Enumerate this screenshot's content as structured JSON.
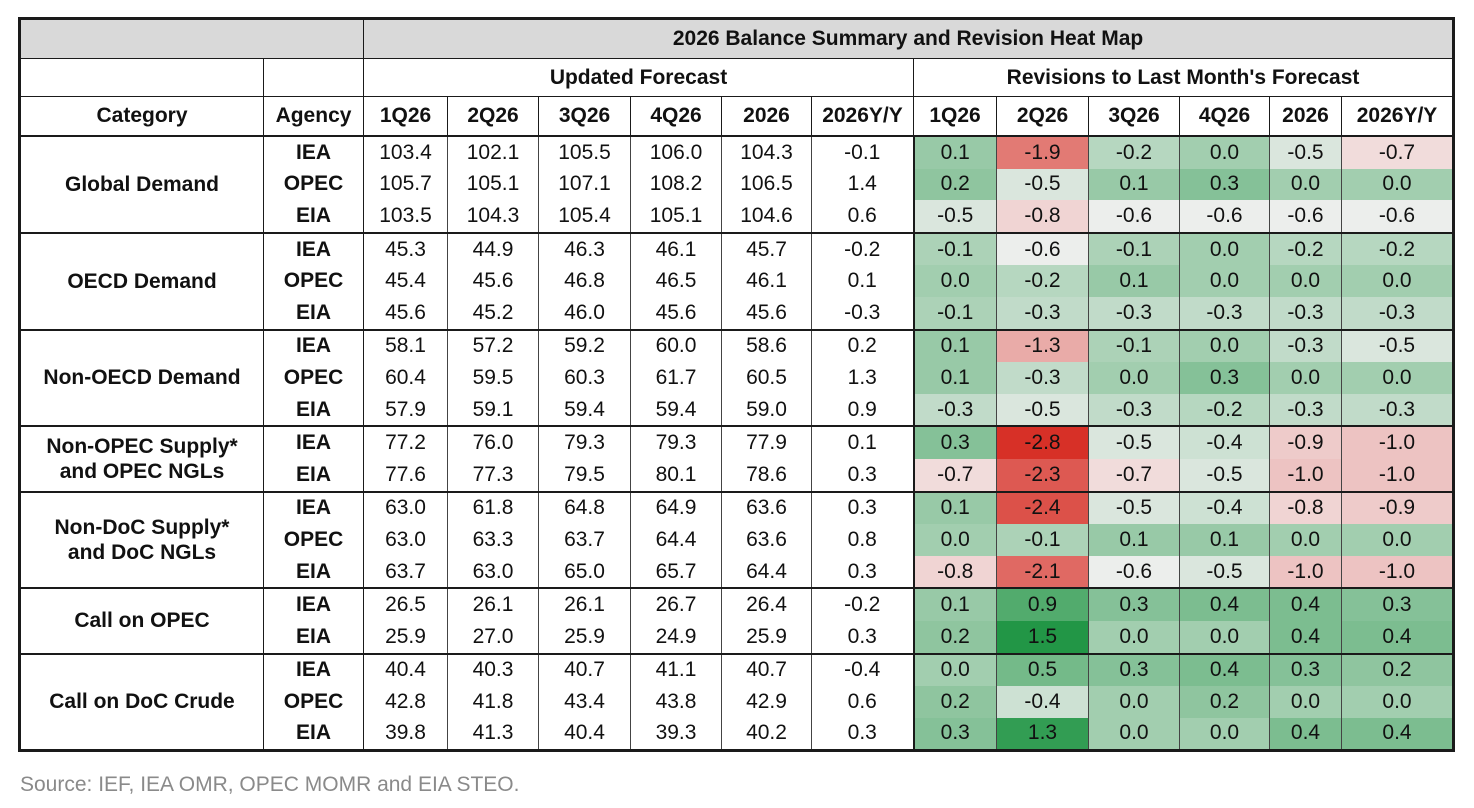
{
  "header": {
    "title": "2026 Balance Summary and Revision Heat Map",
    "groups": [
      "Updated Forecast",
      "Revisions to Last Month's Forecast"
    ],
    "columns": [
      "Category",
      "Agency",
      "1Q26",
      "2Q26",
      "3Q26",
      "4Q26",
      "2026",
      "2026Y/Y",
      "1Q26",
      "2Q26",
      "3Q26",
      "4Q26",
      "2026",
      "2026Y/Y"
    ]
  },
  "table": {
    "groups": [
      {
        "category": "Global Demand",
        "rows": [
          {
            "agency": "IEA",
            "values": [
              "103.4",
              "102.1",
              "105.5",
              "106.0",
              "104.3",
              "-0.1",
              "0.1",
              "-1.9",
              "-0.2",
              "0.0",
              "-0.5",
              "-0.7"
            ]
          },
          {
            "agency": "OPEC",
            "values": [
              "105.7",
              "105.1",
              "107.1",
              "108.2",
              "106.5",
              "1.4",
              "0.2",
              "-0.5",
              "0.1",
              "0.3",
              "0.0",
              "0.0"
            ]
          },
          {
            "agency": "EIA",
            "values": [
              "103.5",
              "104.3",
              "105.4",
              "105.1",
              "104.6",
              "0.6",
              "-0.5",
              "-0.8",
              "-0.6",
              "-0.6",
              "-0.6",
              "-0.6"
            ]
          }
        ]
      },
      {
        "category": "OECD Demand",
        "rows": [
          {
            "agency": "IEA",
            "values": [
              "45.3",
              "44.9",
              "46.3",
              "46.1",
              "45.7",
              "-0.2",
              "-0.1",
              "-0.6",
              "-0.1",
              "0.0",
              "-0.2",
              "-0.2"
            ]
          },
          {
            "agency": "OPEC",
            "values": [
              "45.4",
              "45.6",
              "46.8",
              "46.5",
              "46.1",
              "0.1",
              "0.0",
              "-0.2",
              "0.1",
              "0.0",
              "0.0",
              "0.0"
            ]
          },
          {
            "agency": "EIA",
            "values": [
              "45.6",
              "45.2",
              "46.0",
              "45.6",
              "45.6",
              "-0.3",
              "-0.1",
              "-0.3",
              "-0.3",
              "-0.3",
              "-0.3",
              "-0.3"
            ]
          }
        ]
      },
      {
        "category": "Non-OECD Demand",
        "rows": [
          {
            "agency": "IEA",
            "values": [
              "58.1",
              "57.2",
              "59.2",
              "60.0",
              "58.6",
              "0.2",
              "0.1",
              "-1.3",
              "-0.1",
              "0.0",
              "-0.3",
              "-0.5"
            ]
          },
          {
            "agency": "OPEC",
            "values": [
              "60.4",
              "59.5",
              "60.3",
              "61.7",
              "60.5",
              "1.3",
              "0.1",
              "-0.3",
              "0.0",
              "0.3",
              "0.0",
              "0.0"
            ]
          },
          {
            "agency": "EIA",
            "values": [
              "57.9",
              "59.1",
              "59.4",
              "59.4",
              "59.0",
              "0.9",
              "-0.3",
              "-0.5",
              "-0.3",
              "-0.2",
              "-0.3",
              "-0.3"
            ]
          }
        ]
      },
      {
        "category": "Non-OPEC Supply*\nand OPEC NGLs",
        "rows": [
          {
            "agency": "IEA",
            "values": [
              "77.2",
              "76.0",
              "79.3",
              "79.3",
              "77.9",
              "0.1",
              "0.3",
              "-2.8",
              "-0.5",
              "-0.4",
              "-0.9",
              "-1.0"
            ]
          },
          {
            "agency": "EIA",
            "values": [
              "77.6",
              "77.3",
              "79.5",
              "80.1",
              "78.6",
              "0.3",
              "-0.7",
              "-2.3",
              "-0.7",
              "-0.5",
              "-1.0",
              "-1.0"
            ]
          }
        ]
      },
      {
        "category": "Non-DoC Supply*\nand DoC NGLs",
        "rows": [
          {
            "agency": "IEA",
            "values": [
              "63.0",
              "61.8",
              "64.8",
              "64.9",
              "63.6",
              "0.3",
              "0.1",
              "-2.4",
              "-0.5",
              "-0.4",
              "-0.8",
              "-0.9"
            ]
          },
          {
            "agency": "OPEC",
            "values": [
              "63.0",
              "63.3",
              "63.7",
              "64.4",
              "63.6",
              "0.8",
              "0.0",
              "-0.1",
              "0.1",
              "0.1",
              "0.0",
              "0.0"
            ]
          },
          {
            "agency": "EIA",
            "values": [
              "63.7",
              "63.0",
              "65.0",
              "65.7",
              "64.4",
              "0.3",
              "-0.8",
              "-2.1",
              "-0.6",
              "-0.5",
              "-1.0",
              "-1.0"
            ]
          }
        ]
      },
      {
        "category": "Call on OPEC",
        "rows": [
          {
            "agency": "IEA",
            "values": [
              "26.5",
              "26.1",
              "26.1",
              "26.7",
              "26.4",
              "-0.2",
              "0.1",
              "0.9",
              "0.3",
              "0.4",
              "0.4",
              "0.3"
            ]
          },
          {
            "agency": "EIA",
            "values": [
              "25.9",
              "27.0",
              "25.9",
              "24.9",
              "25.9",
              "0.3",
              "0.2",
              "1.5",
              "0.0",
              "0.0",
              "0.4",
              "0.4"
            ]
          }
        ]
      },
      {
        "category": "Call on DoC Crude",
        "rows": [
          {
            "agency": "IEA",
            "values": [
              "40.4",
              "40.3",
              "40.7",
              "41.1",
              "40.7",
              "-0.4",
              "0.0",
              "0.5",
              "0.3",
              "0.4",
              "0.3",
              "0.2"
            ]
          },
          {
            "agency": "OPEC",
            "values": [
              "42.8",
              "41.8",
              "43.4",
              "43.8",
              "42.9",
              "0.6",
              "0.2",
              "-0.4",
              "0.0",
              "0.2",
              "0.0",
              "0.0"
            ]
          },
          {
            "agency": "EIA",
            "values": [
              "39.8",
              "41.3",
              "40.4",
              "39.3",
              "40.2",
              "0.3",
              "0.3",
              "1.3",
              "0.0",
              "0.0",
              "0.4",
              "0.4"
            ]
          }
        ]
      }
    ]
  },
  "footer": {
    "source": "Source: IEF, IEA OMR, OPEC MOMR and EIA STEO."
  }
}
